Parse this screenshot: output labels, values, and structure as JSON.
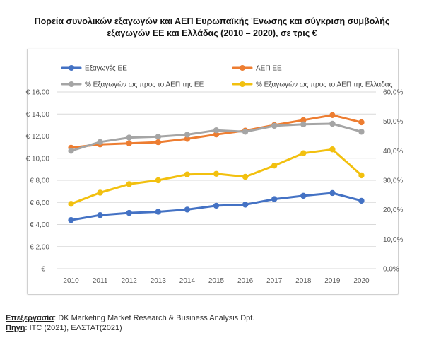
{
  "title": {
    "line1": "Πορεία συνολικών εξαγωγών και ΑΕΠ Ευρωπαϊκής Ένωσης και σύγκριση συμβολής",
    "line2": "εξαγωγών ΕΕ και Ελλάδας (2010 – 2020), σε τρις €"
  },
  "footer": {
    "processing_label": "Επεξεργασία",
    "processing_text": ":  DK Marketing Market Research & Business Analysis Dpt.",
    "source_label": "Πηγή",
    "source_text": ": ITC (2021), ΕΛΣΤΑΤ(2021)"
  },
  "chart_data": {
    "type": "line",
    "categories": [
      "2010",
      "2011",
      "2012",
      "2013",
      "2014",
      "2015",
      "2016",
      "2017",
      "2018",
      "2019",
      "2020"
    ],
    "y_left": {
      "ylim": [
        0,
        16
      ],
      "ticks": [
        0,
        2,
        4,
        6,
        8,
        10,
        12,
        14,
        16
      ],
      "tick_labels": [
        "€ -",
        "€ 2,00",
        "€ 4,00",
        "€ 6,00",
        "€ 8,00",
        "€ 10,00",
        "€ 12,00",
        "€ 14,00",
        "€ 16,00"
      ]
    },
    "y_right": {
      "ylim": [
        0,
        60
      ],
      "ticks": [
        0,
        10,
        20,
        30,
        40,
        50,
        60
      ],
      "tick_labels": [
        "0,0%",
        "10,0%",
        "20,0%",
        "30,0%",
        "40,0%",
        "50,0%",
        "60,0%"
      ]
    },
    "series": [
      {
        "name": "Εξαγωγές ΕΕ",
        "axis": "left",
        "color": "#4472C4",
        "values": [
          4.4,
          4.85,
          5.05,
          5.15,
          5.35,
          5.7,
          5.8,
          6.3,
          6.6,
          6.85,
          6.15
        ]
      },
      {
        "name": "ΑΕΠ ΕΕ",
        "axis": "left",
        "color": "#ED7D31",
        "values": [
          10.95,
          11.25,
          11.35,
          11.45,
          11.75,
          12.15,
          12.5,
          13.0,
          13.45,
          13.9,
          13.25
        ]
      },
      {
        "name": "% Εξαγωγών ως προς το ΑΕΠ της ΕΕ",
        "axis": "right",
        "color": "#A5A5A5",
        "values": [
          40.0,
          43.0,
          44.5,
          44.8,
          45.5,
          47.0,
          46.5,
          48.5,
          49.0,
          49.2,
          46.5
        ]
      },
      {
        "name": "% Εξαγωγών ως προς το ΑΕΠ της Ελλάδας",
        "axis": "right",
        "color": "#F2C00F",
        "values": [
          22.0,
          25.8,
          28.7,
          30.0,
          32.0,
          32.2,
          31.2,
          35.0,
          39.2,
          40.5,
          31.7
        ]
      }
    ],
    "legend_position": "top",
    "grid": true
  }
}
